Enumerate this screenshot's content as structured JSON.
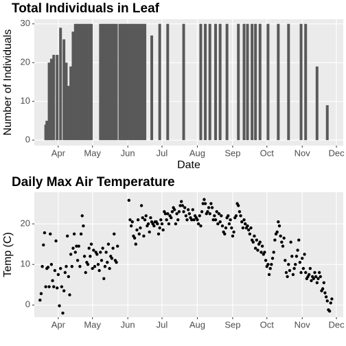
{
  "chart_data": [
    {
      "type": "bar",
      "title": "Total Individuals in Leaf",
      "xlabel": "Date",
      "ylabel": "Number of Individuals",
      "color": "#595959",
      "grid": true,
      "x": [
        80,
        81,
        83,
        85,
        87,
        90,
        93,
        96,
        98,
        100,
        102,
        104,
        106,
        108,
        110,
        112,
        114,
        116,
        118,
        120,
        128,
        130,
        132,
        134,
        136,
        138,
        140,
        142,
        145,
        147,
        149,
        151,
        153,
        155,
        157,
        159,
        161,
        163,
        165,
        167,
        173,
        180,
        187,
        201,
        216,
        220,
        224,
        229,
        233,
        239,
        249,
        254,
        257,
        261,
        264,
        268,
        275,
        284,
        293,
        304,
        308,
        318,
        327
      ],
      "values": [
        4,
        5,
        20,
        21,
        22,
        22,
        29,
        26,
        20,
        14,
        19,
        28,
        30,
        30,
        30,
        30,
        30,
        30,
        30,
        30,
        30,
        30,
        30,
        30,
        30,
        30,
        30,
        30,
        30,
        30,
        30,
        30,
        30,
        30,
        30,
        30,
        30,
        30,
        30,
        30,
        27,
        30,
        30,
        30,
        30,
        30,
        30,
        30,
        30,
        30,
        30,
        30,
        30,
        30,
        30,
        30,
        30,
        30,
        30,
        30,
        30,
        19,
        9
      ],
      "xlim": [
        70,
        341
      ],
      "ylim": [
        -1.4,
        31.2
      ],
      "yticks": [
        0,
        10,
        20,
        30
      ],
      "xticks": [
        {
          "value": 91,
          "label": "Apr"
        },
        {
          "value": 121,
          "label": "May"
        },
        {
          "value": 152,
          "label": "Jun"
        },
        {
          "value": 182,
          "label": "Jul"
        },
        {
          "value": 213,
          "label": "Aug"
        },
        {
          "value": 244,
          "label": "Sep"
        },
        {
          "value": 274,
          "label": "Oct"
        },
        {
          "value": 305,
          "label": "Nov"
        },
        {
          "value": 335,
          "label": "Dec"
        }
      ]
    },
    {
      "type": "scatter",
      "title": "Daily Max Air Temperature",
      "ylabel": "Temp (C)",
      "color": "#000000",
      "grid": true,
      "x": [
        75,
        76,
        77,
        78,
        79,
        80,
        81,
        82,
        83,
        84,
        85,
        86,
        87,
        88,
        89,
        90,
        91,
        92,
        93,
        94,
        95,
        96,
        97,
        98,
        99,
        100,
        101,
        102,
        103,
        104,
        105,
        106,
        107,
        108,
        109,
        110,
        111,
        112,
        113,
        114,
        115,
        116,
        117,
        118,
        119,
        120,
        121,
        122,
        123,
        124,
        125,
        126,
        127,
        128,
        129,
        130,
        131,
        132,
        133,
        134,
        135,
        136,
        137,
        138,
        139,
        140,
        141,
        142,
        143,
        153,
        154,
        155,
        156,
        157,
        158,
        159,
        160,
        161,
        162,
        163,
        164,
        165,
        166,
        167,
        168,
        169,
        170,
        171,
        172,
        173,
        174,
        175,
        176,
        177,
        178,
        179,
        180,
        181,
        182,
        183,
        184,
        185,
        186,
        187,
        188,
        189,
        190,
        191,
        192,
        193,
        194,
        195,
        196,
        197,
        198,
        199,
        200,
        201,
        202,
        203,
        204,
        205,
        206,
        207,
        208,
        209,
        210,
        211,
        212,
        213,
        214,
        215,
        216,
        217,
        218,
        219,
        220,
        221,
        222,
        223,
        224,
        225,
        226,
        227,
        228,
        229,
        230,
        231,
        232,
        233,
        234,
        235,
        236,
        237,
        238,
        239,
        240,
        241,
        242,
        243,
        244,
        245,
        246,
        247,
        248,
        249,
        250,
        251,
        252,
        253,
        254,
        255,
        256,
        257,
        258,
        259,
        260,
        261,
        262,
        263,
        264,
        265,
        266,
        267,
        268,
        269,
        270,
        271,
        272,
        273,
        274,
        275,
        276,
        277,
        278,
        279,
        280,
        281,
        282,
        283,
        284,
        285,
        286,
        287,
        288,
        289,
        290,
        291,
        292,
        293,
        294,
        295,
        296,
        297,
        298,
        299,
        300,
        301,
        302,
        303,
        304,
        305,
        306,
        307,
        308,
        309,
        310,
        311,
        312,
        313,
        314,
        315,
        316,
        317,
        318,
        319,
        320,
        321,
        322,
        323,
        324,
        325,
        326,
        327,
        328,
        329,
        330,
        331
      ],
      "values": [
        1.2,
        2.8,
        9.5,
        14.8,
        17.8,
        4.5,
        9,
        9.3,
        4.5,
        17.5,
        10,
        6,
        4.5,
        8.5,
        15.8,
        4.2,
        7.5,
        -0.2,
        9,
        4.5,
        -2,
        3.5,
        8,
        9.5,
        17,
        7,
        2.5,
        12.5,
        9.5,
        14,
        17.5,
        13,
        14.5,
        11,
        14.5,
        9.5,
        17.5,
        22,
        19.5,
        12,
        8,
        10.5,
        10,
        14,
        12,
        15,
        9,
        13.5,
        9.5,
        13,
        12.5,
        10,
        8.5,
        13,
        11,
        14,
        6.5,
        9.5,
        13,
        10.5,
        15,
        9,
        12,
        11.5,
        14,
        17.5,
        11,
        10.5,
        14.5,
        25.8,
        21,
        19.5,
        20.5,
        17,
        16.5,
        15,
        18.5,
        21,
        17.5,
        19,
        24.5,
        21.5,
        17,
        21,
        22,
        19.5,
        20,
        18,
        21.5,
        20.5,
        20,
        19.5,
        20.5,
        20.5,
        20,
        17.5,
        19,
        21,
        20,
        18.5,
        23,
        22.5,
        21,
        22.5,
        20,
        22,
        21.5,
        23,
        24,
        23.5,
        20,
        22.5,
        21,
        23,
        24.5,
        25.5,
        24.5,
        23,
        24,
        22,
        21,
        23.5,
        22.5,
        21.5,
        21,
        23.5,
        21,
        22,
        21.5,
        21,
        20,
        22,
        19.5,
        23,
        25,
        26,
        25,
        22.5,
        23,
        24,
        22.5,
        25,
        24,
        21,
        22,
        21,
        23,
        20,
        22.5,
        20.5,
        22,
        19.5,
        18,
        17.5,
        19,
        21.5,
        22,
        20,
        21,
        19,
        17,
        18,
        21.5,
        22,
        25,
        24.5,
        23,
        22,
        20.5,
        19,
        21,
        20,
        19,
        19.5,
        18.5,
        17.5,
        19,
        16,
        15.5,
        17,
        14,
        16,
        13.5,
        15,
        15.5,
        13,
        14.5,
        12.5,
        13,
        11,
        9.5,
        10,
        7.5,
        9,
        10,
        11.5,
        13,
        16,
        17.5,
        18,
        20.5,
        19.5,
        17,
        15.5,
        14.5,
        16.5,
        11,
        8,
        7,
        10,
        8.5,
        15.5,
        12,
        7.5,
        9,
        10,
        12,
        13.5,
        16,
        10.5,
        8,
        11.5,
        9,
        12.5,
        8,
        6.5,
        7,
        7.5,
        9,
        6,
        7,
        6.5,
        8,
        7,
        5.5,
        6.5,
        8,
        7,
        3.5,
        4,
        5.5,
        3,
        2,
        1,
        -1.2,
        -1.5,
        0.5,
        1.5
      ],
      "xlim": [
        70,
        341
      ],
      "ylim": [
        -3,
        27.8
      ],
      "yticks": [
        0,
        10,
        20
      ],
      "xticks": [
        {
          "value": 91,
          "label": "Apr"
        },
        {
          "value": 121,
          "label": "May"
        },
        {
          "value": 152,
          "label": "Jun"
        },
        {
          "value": 182,
          "label": "Jul"
        },
        {
          "value": 213,
          "label": "Aug"
        },
        {
          "value": 244,
          "label": "Sep"
        },
        {
          "value": 274,
          "label": "Oct"
        },
        {
          "value": 305,
          "label": "Nov"
        },
        {
          "value": 335,
          "label": "Dec"
        }
      ]
    }
  ]
}
